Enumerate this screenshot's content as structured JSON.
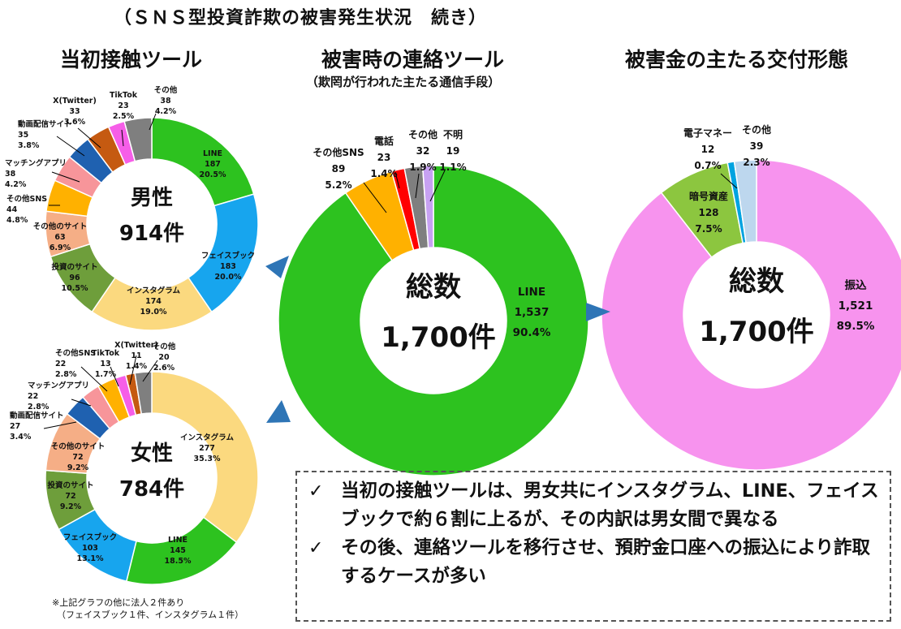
{
  "title": "（ＳＮＳ型投資詐欺の被害発生状況　続き）",
  "headers": {
    "initial_contact": "当初接触ツール",
    "contact_tool": "被害時の連絡ツール",
    "contact_tool_sub": "（欺罔が行われた主たる通信手段）",
    "payment_form": "被害金の主たる交付形態"
  },
  "colors": {
    "line": "#2DC21F",
    "facebook": "#17A5EE",
    "instagram": "#FBD97F",
    "invest": "#6E9E3B",
    "other_site": "#F5AE86",
    "other_sns": "#FFB100",
    "matching": "#F7959A",
    "video": "#1F61B0",
    "twitter": "#C55A11",
    "tiktok": "#F65EE8",
    "other": "#7F7F7F",
    "phone": "#FF0000",
    "unknown": "#C7A1F2",
    "transfer": "#F793EE",
    "crypto": "#8CC63F",
    "emoney": "#00A3E0",
    "other_pay": "#BDD7EE",
    "arrow": "#2E75B6"
  },
  "chart_data": [
    {
      "id": "male",
      "type": "pie",
      "title": "当初接触ツール（男性）",
      "center_line1": "男性",
      "center_line2": "914件",
      "slices": [
        {
          "label": "LINE",
          "value": 187,
          "pct": "20.5%",
          "count": "187",
          "color_key": "line"
        },
        {
          "label": "フェイスブック",
          "value": 183,
          "pct": "20.0%",
          "count": "183",
          "color_key": "facebook"
        },
        {
          "label": "インスタグラム",
          "value": 174,
          "pct": "19.0%",
          "count": "174",
          "color_key": "instagram"
        },
        {
          "label": "投資のサイト",
          "value": 96,
          "pct": "10.5%",
          "count": "96",
          "color_key": "invest"
        },
        {
          "label": "その他のサイト",
          "value": 63,
          "pct": "6.9%",
          "count": "63",
          "color_key": "other_site"
        },
        {
          "label": "その他SNS",
          "value": 44,
          "pct": "4.8%",
          "count": "44",
          "color_key": "other_sns"
        },
        {
          "label": "マッチングアプリ",
          "value": 38,
          "pct": "4.2%",
          "count": "38",
          "color_key": "matching"
        },
        {
          "label": "動画配信サイト",
          "value": 35,
          "pct": "3.8%",
          "count": "35",
          "color_key": "video"
        },
        {
          "label": "X(Twitter)",
          "value": 33,
          "pct": "3.6%",
          "count": "33",
          "color_key": "twitter"
        },
        {
          "label": "TikTok",
          "value": 23,
          "pct": "2.5%",
          "count": "23",
          "color_key": "tiktok"
        },
        {
          "label": "その他",
          "value": 38,
          "pct": "4.2%",
          "count": "38",
          "color_key": "other"
        }
      ]
    },
    {
      "id": "female",
      "type": "pie",
      "title": "当初接触ツール（女性）",
      "center_line1": "女性",
      "center_line2": "784件",
      "slices": [
        {
          "label": "インスタグラム",
          "value": 277,
          "pct": "35.3%",
          "count": "277",
          "color_key": "instagram"
        },
        {
          "label": "LINE",
          "value": 145,
          "pct": "18.5%",
          "count": "145",
          "color_key": "line"
        },
        {
          "label": "フェイスブック",
          "value": 103,
          "pct": "13.1%",
          "count": "103",
          "color_key": "facebook"
        },
        {
          "label": "投資のサイト",
          "value": 72,
          "pct": "9.2%",
          "count": "72",
          "color_key": "invest"
        },
        {
          "label": "その他のサイト",
          "value": 72,
          "pct": "9.2%",
          "count": "72",
          "color_key": "other_site"
        },
        {
          "label": "動画配信サイト",
          "value": 27,
          "pct": "3.4%",
          "count": "27",
          "color_key": "video"
        },
        {
          "label": "マッチングアプリ",
          "value": 22,
          "pct": "2.8%",
          "count": "22",
          "color_key": "matching"
        },
        {
          "label": "その他SNS",
          "value": 22,
          "pct": "2.8%",
          "count": "22",
          "color_key": "other_sns"
        },
        {
          "label": "TikTok",
          "value": 13,
          "pct": "1.7%",
          "count": "13",
          "color_key": "tiktok"
        },
        {
          "label": "X(Twitter)",
          "value": 11,
          "pct": "1.4%",
          "count": "11",
          "color_key": "twitter"
        },
        {
          "label": "その他",
          "value": 20,
          "pct": "2.6%",
          "count": "20",
          "color_key": "other"
        }
      ]
    },
    {
      "id": "contact",
      "type": "pie",
      "title": "被害時の連絡ツール",
      "center_line1": "総数",
      "center_line2": "1,700件",
      "slices": [
        {
          "label": "LINE",
          "value": 1537,
          "pct": "90.4%",
          "count": "1,537",
          "color_key": "line"
        },
        {
          "label": "その他SNS",
          "value": 89,
          "pct": "5.2%",
          "count": "89",
          "color_key": "other_sns"
        },
        {
          "label": "電話",
          "value": 23,
          "pct": "1.4%",
          "count": "23",
          "color_key": "phone"
        },
        {
          "label": "その他",
          "value": 32,
          "pct": "1.9%",
          "count": "32",
          "color_key": "other"
        },
        {
          "label": "不明",
          "value": 19,
          "pct": "1.1%",
          "count": "19",
          "color_key": "unknown"
        }
      ]
    },
    {
      "id": "payment",
      "type": "pie",
      "title": "被害金の主たる交付形態",
      "center_line1": "総数",
      "center_line2": "1,700件",
      "slices": [
        {
          "label": "振込",
          "value": 1521,
          "pct": "89.5%",
          "count": "1,521",
          "color_key": "transfer"
        },
        {
          "label": "暗号資産",
          "value": 128,
          "pct": "7.5%",
          "count": "128",
          "color_key": "crypto"
        },
        {
          "label": "電子マネー",
          "value": 12,
          "pct": "0.7%",
          "count": "12",
          "color_key": "emoney"
        },
        {
          "label": "その他",
          "value": 39,
          "pct": "2.3%",
          "count": "39",
          "color_key": "other_pay"
        }
      ]
    }
  ],
  "footnote": {
    "line1": "※上記グラフの他に法人２件あり",
    "line2": "（フェイスブック１件、インスタグラム１件）"
  },
  "notes": {
    "check": "✓",
    "items": [
      "当初の接触ツールは、男女共にインスタグラム、LINE、フェイスブックで約６割に上るが、その内訳は男女間で異なる",
      "その後、連絡ツールを移行させ、預貯金口座への振込により詐取するケースが多い"
    ]
  }
}
